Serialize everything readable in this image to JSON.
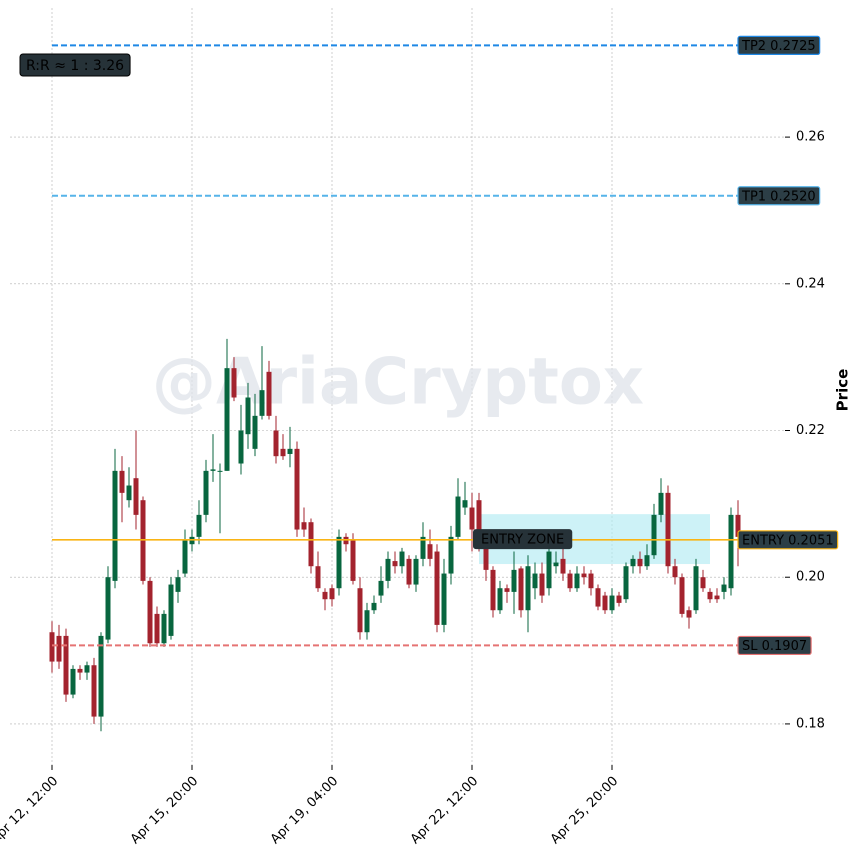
{
  "chart_data": {
    "type": "candlestick",
    "watermark": "@AriaCryptox",
    "annotation": "R:R ≈ 1 : 3.26",
    "ylabel": "Price",
    "x": [
      "Apr 12, 12:00",
      "Apr 12, 16:00",
      "Apr 12, 20:00",
      "Apr 13, 00:00",
      "Apr 13, 04:00",
      "Apr 13, 08:00",
      "Apr 13, 12:00",
      "Apr 13, 16:00",
      "Apr 13, 20:00",
      "Apr 14, 00:00",
      "Apr 14, 04:00",
      "Apr 14, 08:00",
      "Apr 14, 12:00",
      "Apr 14, 16:00",
      "Apr 14, 20:00",
      "Apr 15, 00:00",
      "Apr 15, 04:00",
      "Apr 15, 08:00",
      "Apr 15, 12:00",
      "Apr 15, 16:00",
      "Apr 15, 20:00",
      "Apr 16, 00:00",
      "Apr 16, 04:00",
      "Apr 16, 08:00",
      "Apr 16, 12:00",
      "Apr 16, 16:00",
      "Apr 16, 20:00",
      "Apr 17, 00:00",
      "Apr 17, 04:00",
      "Apr 17, 08:00",
      "Apr 17, 12:00",
      "Apr 17, 16:00",
      "Apr 17, 20:00",
      "Apr 18, 00:00",
      "Apr 18, 04:00",
      "Apr 18, 08:00",
      "Apr 18, 12:00",
      "Apr 18, 16:00",
      "Apr 18, 20:00",
      "Apr 19, 00:00",
      "Apr 19, 04:00",
      "Apr 19, 08:00",
      "Apr 19, 12:00",
      "Apr 19, 16:00",
      "Apr 19, 20:00",
      "Apr 20, 00:00",
      "Apr 20, 04:00",
      "Apr 20, 08:00",
      "Apr 20, 12:00",
      "Apr 20, 16:00",
      "Apr 20, 20:00",
      "Apr 21, 00:00",
      "Apr 21, 04:00",
      "Apr 21, 08:00",
      "Apr 21, 12:00",
      "Apr 21, 16:00",
      "Apr 21, 20:00",
      "Apr 22, 00:00",
      "Apr 22, 04:00",
      "Apr 22, 08:00",
      "Apr 22, 12:00",
      "Apr 22, 16:00",
      "Apr 22, 20:00",
      "Apr 23, 00:00",
      "Apr 23, 04:00",
      "Apr 23, 08:00",
      "Apr 23, 12:00",
      "Apr 23, 16:00",
      "Apr 23, 20:00",
      "Apr 24, 00:00",
      "Apr 24, 04:00",
      "Apr 24, 08:00",
      "Apr 24, 12:00",
      "Apr 24, 16:00",
      "Apr 24, 20:00",
      "Apr 25, 00:00",
      "Apr 25, 04:00",
      "Apr 25, 08:00",
      "Apr 25, 12:00",
      "Apr 25, 16:00",
      "Apr 25, 20:00",
      "Apr 26, 00:00",
      "Apr 26, 04:00",
      "Apr 26, 08:00",
      "Apr 26, 12:00",
      "Apr 26, 16:00",
      "Apr 26, 20:00",
      "Apr 27, 00:00",
      "Apr 27, 04:00",
      "Apr 27, 08:00",
      "Apr 27, 12:00",
      "Apr 27, 16:00",
      "Apr 27, 20:00",
      "Apr 28, 00:00",
      "Apr 28, 04:00",
      "Apr 28, 08:00",
      "Apr 28, 12:00",
      "Apr 28, 16:00",
      "Apr 28, 20:00"
    ],
    "open": [
      0.1925,
      0.192,
      0.192,
      0.184,
      0.1875,
      0.187,
      0.188,
      0.181,
      0.1915,
      0.1995,
      0.2145,
      0.2105,
      0.2135,
      0.2105,
      0.1995,
      0.195,
      0.191,
      0.192,
      0.198,
      0.2005,
      0.2045,
      0.2055,
      0.2085,
      0.2145,
      0.2145,
      0.2145,
      0.2285,
      0.2155,
      0.2195,
      0.2175,
      0.222,
      0.228,
      0.22,
      0.2175,
      0.2168,
      0.2175,
      0.2075,
      0.2075,
      0.2015,
      0.198,
      0.1985,
      0.1985,
      0.2055,
      0.205,
      0.1985,
      0.1925,
      0.1955,
      0.1975,
      0.1995,
      0.2022,
      0.2015,
      0.2025,
      0.199,
      0.2025,
      0.2045,
      0.2035,
      0.1935,
      0.2005,
      0.2055,
      0.2095,
      0.2095,
      0.2105,
      0.2045,
      0.201,
      0.1955,
      0.1985,
      0.198,
      0.2012,
      0.1955,
      0.1985,
      0.2005,
      0.1985,
      0.2015,
      0.2025,
      0.2005,
      0.1985,
      0.2005,
      0.2005,
      0.1985,
      0.1975,
      0.1955,
      0.1975,
      0.197,
      0.2015,
      0.2025,
      0.2015,
      0.203,
      0.2085,
      0.2115,
      0.2015,
      0.2,
      0.1955,
      0.1955,
      0.2,
      0.198,
      0.1975,
      0.198,
      0.1985,
      0.2085
    ],
    "close": [
      0.1885,
      0.1885,
      0.184,
      0.1875,
      0.187,
      0.188,
      0.181,
      0.192,
      0.2,
      0.2145,
      0.2115,
      0.2125,
      0.2085,
      0.1995,
      0.191,
      0.191,
      0.195,
      0.199,
      0.2,
      0.205,
      0.2055,
      0.2085,
      0.2145,
      0.2147,
      0.2145,
      0.2285,
      0.2245,
      0.22,
      0.2245,
      0.222,
      0.2255,
      0.222,
      0.2165,
      0.2165,
      0.2175,
      0.2065,
      0.2065,
      0.2015,
      0.1985,
      0.197,
      0.197,
      0.2055,
      0.2045,
      0.1995,
      0.1925,
      0.1955,
      0.1965,
      0.1995,
      0.2025,
      0.2015,
      0.2035,
      0.199,
      0.2025,
      0.2055,
      0.2025,
      0.1935,
      0.2005,
      0.2055,
      0.211,
      0.2105,
      0.2065,
      0.2045,
      0.201,
      0.1955,
      0.1985,
      0.198,
      0.201,
      0.1955,
      0.2015,
      0.2005,
      0.1975,
      0.2035,
      0.202,
      0.2005,
      0.1985,
      0.2005,
      0.2,
      0.1985,
      0.196,
      0.1955,
      0.1975,
      0.1965,
      0.2015,
      0.2025,
      0.2015,
      0.203,
      0.2085,
      0.2115,
      0.2015,
      0.2,
      0.195,
      0.1945,
      0.2015,
      0.1985,
      0.197,
      0.197,
      0.199,
      0.2085,
      0.2055
    ],
    "high": [
      0.194,
      0.1935,
      0.193,
      0.188,
      0.188,
      0.1885,
      0.189,
      0.1925,
      0.2015,
      0.2175,
      0.2165,
      0.215,
      0.22,
      0.211,
      0.2,
      0.196,
      0.1955,
      0.2,
      0.201,
      0.2065,
      0.2065,
      0.2105,
      0.216,
      0.2195,
      0.2155,
      0.2325,
      0.23,
      0.2235,
      0.2265,
      0.225,
      0.2315,
      0.2295,
      0.222,
      0.2195,
      0.2205,
      0.2185,
      0.2095,
      0.208,
      0.2035,
      0.1985,
      0.199,
      0.2065,
      0.206,
      0.206,
      0.2,
      0.1965,
      0.1975,
      0.2015,
      0.2035,
      0.2035,
      0.204,
      0.203,
      0.203,
      0.2075,
      0.2065,
      0.2045,
      0.2025,
      0.207,
      0.2135,
      0.213,
      0.2115,
      0.2115,
      0.205,
      0.2015,
      0.1995,
      0.199,
      0.2035,
      0.2015,
      0.203,
      0.202,
      0.202,
      0.205,
      0.2035,
      0.204,
      0.201,
      0.2015,
      0.2015,
      0.201,
      0.199,
      0.198,
      0.1985,
      0.198,
      0.202,
      0.203,
      0.2035,
      0.2045,
      0.21,
      0.2135,
      0.2125,
      0.2025,
      0.2005,
      0.196,
      0.2025,
      0.201,
      0.1985,
      0.1985,
      0.2,
      0.2095,
      0.2105
    ],
    "low": [
      0.187,
      0.1875,
      0.183,
      0.1835,
      0.186,
      0.186,
      0.18,
      0.179,
      0.191,
      0.1985,
      0.2075,
      0.2095,
      0.2065,
      0.199,
      0.1905,
      0.1905,
      0.1905,
      0.1915,
      0.1965,
      0.2,
      0.2035,
      0.2045,
      0.2075,
      0.213,
      0.206,
      0.2145,
      0.224,
      0.214,
      0.2175,
      0.2165,
      0.2215,
      0.2215,
      0.2155,
      0.216,
      0.215,
      0.2055,
      0.2055,
      0.2005,
      0.198,
      0.1955,
      0.196,
      0.1975,
      0.2035,
      0.199,
      0.1915,
      0.1915,
      0.195,
      0.1965,
      0.1985,
      0.2005,
      0.2005,
      0.1985,
      0.198,
      0.2015,
      0.2015,
      0.1925,
      0.1925,
      0.199,
      0.205,
      0.2085,
      0.2035,
      0.2035,
      0.1995,
      0.1945,
      0.195,
      0.1965,
      0.195,
      0.1945,
      0.1925,
      0.197,
      0.1965,
      0.1975,
      0.2005,
      0.1995,
      0.198,
      0.198,
      0.199,
      0.1975,
      0.1955,
      0.195,
      0.195,
      0.196,
      0.1965,
      0.2005,
      0.2005,
      0.201,
      0.2025,
      0.2075,
      0.2005,
      0.199,
      0.1945,
      0.193,
      0.195,
      0.198,
      0.1965,
      0.1965,
      0.197,
      0.1975,
      0.2015
    ],
    "up_color": "#08663f",
    "down_color": "#a3232e",
    "ylim": [
      0.1744,
      0.2776
    ],
    "yticks": [
      0.18,
      {
        "value": 0.2,
        "label": "0.20"
      },
      0.22,
      0.24,
      0.26
    ],
    "xticks": [
      "Apr 12, 12:00",
      "Apr 15, 20:00",
      "Apr 19, 04:00",
      "Apr 22, 12:00",
      "Apr 25, 20:00"
    ],
    "grid": true,
    "levels": [
      {
        "label": "TP2 0.2725",
        "value": 0.2725,
        "color": "#1e88e5",
        "dashed": true
      },
      {
        "label": "TP1 0.2520",
        "value": 0.252,
        "color": "#56b4e9",
        "dashed": true
      },
      {
        "label": "ENTRY 0.2051",
        "value": 0.2051,
        "color": "#f9b414",
        "text_color": "#4dd0e1",
        "dashed": false
      },
      {
        "label": "SL 0.1907",
        "value": 0.1907,
        "color": "#e57373",
        "dashed": true
      }
    ],
    "zone": {
      "label": "ENTRY ZONE",
      "low": 0.2018,
      "high": 0.2086,
      "start": "Apr 22, 16:00",
      "end": "Apr 28, 04:00",
      "color": "#b2ebf2"
    }
  }
}
